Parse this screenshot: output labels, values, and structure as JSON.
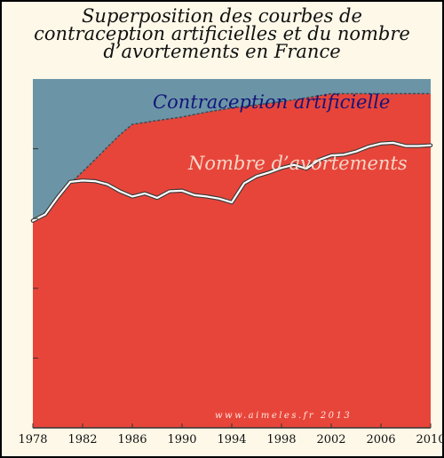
{
  "title_lines": [
    "Superposition des courbes de",
    "contraception artificielles et du nombre",
    "d’avortements en France"
  ],
  "labels": {
    "contraception": "Contraception artificielle",
    "avortements": "Nombre d’avortements"
  },
  "credit": "www.aimeles.fr 2013",
  "colors": {
    "contraception_area": "#6b95a6",
    "avortements_area": "#e8453a",
    "abortion_line": "#ffffff",
    "background": "#fdf8e8"
  },
  "chart_data": {
    "type": "area",
    "x_ticks": [
      "1978",
      "1982",
      "1986",
      "1990",
      "1994",
      "1998",
      "2002",
      "2006",
      "2010"
    ],
    "xlim": [
      1978,
      2010
    ],
    "ylim": [
      0,
      100
    ],
    "y_tick_values": [
      20,
      40,
      60,
      80
    ],
    "grid": false,
    "series": [
      {
        "name": "Contraception artificielle",
        "kind": "area",
        "x": [
          1978,
          1979,
          1980,
          1981,
          1982,
          1983,
          1984,
          1985,
          1986,
          1988,
          1990,
          1992,
          1994,
          1996,
          1998,
          2000,
          2002,
          2004,
          2006,
          2008,
          2010
        ],
        "y": [
          100,
          100,
          100,
          100,
          100,
          100,
          100,
          100,
          100,
          100,
          100,
          100,
          100,
          100,
          100,
          100,
          100,
          100,
          100,
          100,
          100
        ]
      },
      {
        "name": "Nombre d’avortements",
        "kind": "area",
        "x": [
          1978,
          1979,
          1980,
          1981,
          1982,
          1983,
          1984,
          1985,
          1986,
          1988,
          1990,
          1992,
          1994,
          1996,
          1998,
          2000,
          2002,
          2004,
          2006,
          2008,
          2010
        ],
        "y": [
          59.4,
          61.8,
          66.3,
          70.0,
          73.4,
          76.9,
          80.5,
          84.0,
          87.0,
          88.1,
          89.1,
          90.5,
          91.7,
          92.6,
          93.5,
          94.6,
          95.8,
          95.8,
          95.8,
          95.8,
          95.8
        ]
      },
      {
        "name": "Nombre d’avortements",
        "kind": "line",
        "x": [
          1978,
          1979,
          1980,
          1981,
          1982,
          1983,
          1984,
          1985,
          1986,
          1987,
          1988,
          1989,
          1990,
          1991,
          1992,
          1993,
          1994,
          1995,
          1996,
          1997,
          1998,
          1999,
          2000,
          2001,
          2002,
          2003,
          2004,
          2005,
          2006,
          2007,
          2008,
          2009,
          2010
        ],
        "y": [
          59.4,
          61.2,
          66.1,
          70.5,
          70.9,
          70.7,
          69.8,
          67.8,
          66.3,
          67.2,
          65.9,
          67.8,
          68.0,
          66.7,
          66.3,
          65.7,
          64.6,
          70.1,
          72.1,
          73.2,
          74.5,
          75.4,
          74.3,
          76.8,
          78.1,
          78.3,
          79.2,
          80.6,
          81.5,
          81.7,
          80.8,
          80.8,
          81.0
        ]
      }
    ]
  }
}
